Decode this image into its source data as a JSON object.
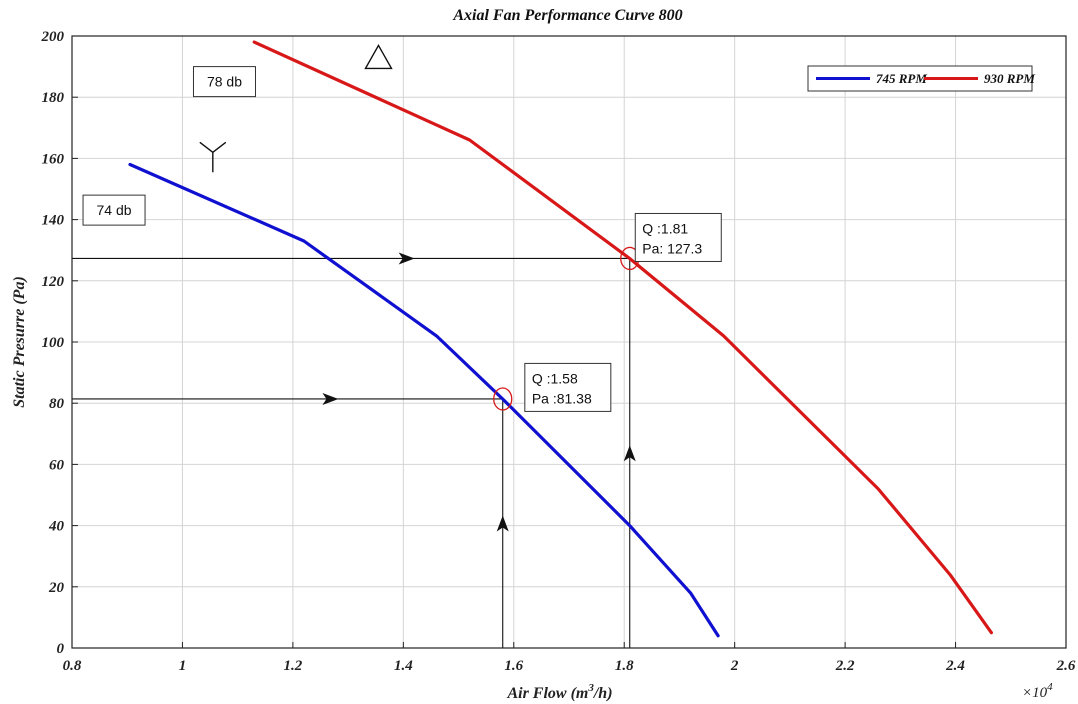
{
  "chart_data": {
    "type": "line",
    "title": "Axial Fan Performance Curve 800",
    "xlabel_main": "Air Flow (m",
    "xlabel_sup": "3",
    "xlabel_tail": "/h)",
    "ylabel": "Static Presurre (Pa)",
    "x_multiplier_base": "×10",
    "x_multiplier_exp": "4",
    "xlim": [
      0.8,
      2.6
    ],
    "ylim": [
      0,
      200
    ],
    "x_ticks": [
      "0.8",
      "1",
      "1.2",
      "1.4",
      "1.6",
      "1.8",
      "2",
      "2.2",
      "2.4",
      "2.6"
    ],
    "y_ticks": [
      "0",
      "20",
      "40",
      "60",
      "80",
      "100",
      "120",
      "140",
      "160",
      "180",
      "200"
    ],
    "grid": true,
    "legend_position": "top-right",
    "series": [
      {
        "name": "745 RPM",
        "color": "#1010d0",
        "x": [
          0.905,
          1.22,
          1.46,
          1.58,
          1.81,
          1.92,
          1.97
        ],
        "y": [
          158,
          133,
          102,
          81.38,
          40,
          18,
          4
        ]
      },
      {
        "name": "930 RPM",
        "color": "#d81818",
        "x": [
          1.13,
          1.52,
          1.81,
          1.98,
          2.26,
          2.39,
          2.465
        ],
        "y": [
          198,
          166,
          127.3,
          102,
          52,
          24,
          5
        ]
      }
    ],
    "annotations": {
      "db_labels": [
        {
          "text": "78 db",
          "x": 1.02,
          "y": 190
        },
        {
          "text": "74 db",
          "x": 0.82,
          "y": 148
        }
      ],
      "operating_points": [
        {
          "line1": "Q :1.58",
          "line2": "Pa :81.38",
          "qx": 1.58,
          "pa": 81.38,
          "label_x": 1.62,
          "label_y": 93
        },
        {
          "line1": "Q :1.81",
          "line2": "Pa: 127.3",
          "qx": 1.81,
          "pa": 127.3,
          "label_x": 1.82,
          "label_y": 142
        }
      ],
      "symbols": [
        {
          "name": "delta",
          "x": 1.355,
          "y": 193
        },
        {
          "name": "star",
          "x": 1.055,
          "y": 162
        }
      ]
    }
  }
}
